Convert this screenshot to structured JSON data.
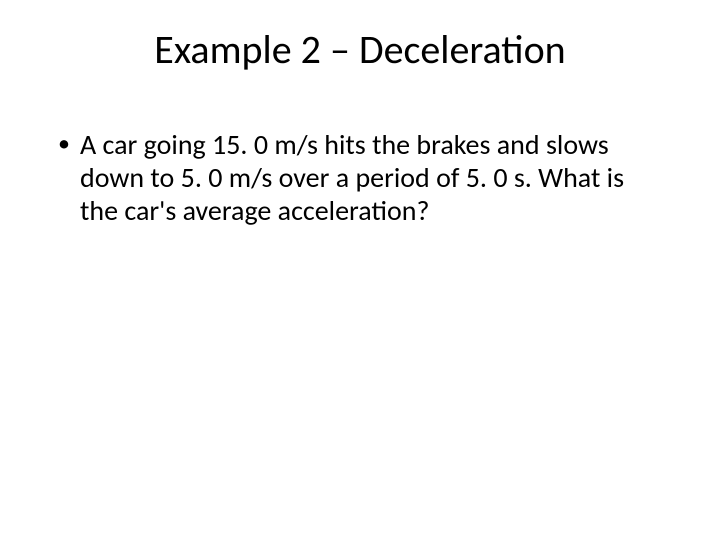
{
  "slide": {
    "title": "Example 2 – Deceleration",
    "bullets": [
      "A car going 15. 0 m/s hits the brakes and slows down to 5. 0 m/s over a period of 5. 0 s. What is the car's average acceleration?"
    ],
    "background_color": "#ffffff",
    "text_color": "#000000",
    "title_fontsize": 40,
    "body_fontsize": 28,
    "font_family": "Calibri"
  }
}
